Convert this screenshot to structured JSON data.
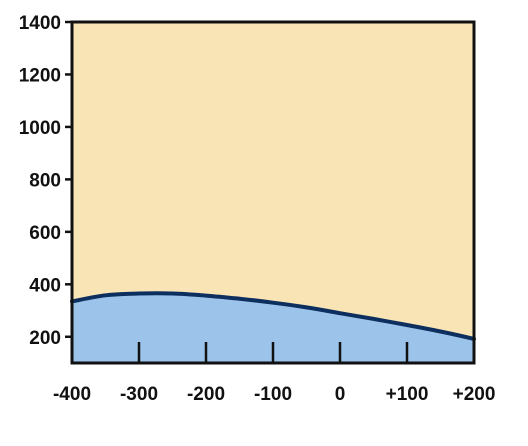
{
  "chart_data": {
    "type": "area",
    "title": "",
    "xlabel": "",
    "ylabel": "",
    "xlim": [
      -400,
      200
    ],
    "ylim": [
      100,
      1400
    ],
    "x_tick_labels": [
      {
        "value": -400,
        "label": "-400"
      },
      {
        "value": -300,
        "label": "-300"
      },
      {
        "value": -200,
        "label": "-200"
      },
      {
        "value": -100,
        "label": "-100"
      },
      {
        "value": 0,
        "label": "0"
      },
      {
        "value": 100,
        "label": "+100"
      },
      {
        "value": 200,
        "label": "+200"
      }
    ],
    "y_tick_labels": [
      {
        "value": 1400,
        "label": "1400"
      },
      {
        "value": 1200,
        "label": "1200"
      },
      {
        "value": 1000,
        "label": "1000"
      },
      {
        "value": 800,
        "label": "800"
      },
      {
        "value": 600,
        "label": "600"
      },
      {
        "value": 400,
        "label": "400"
      },
      {
        "value": 200,
        "label": "200"
      }
    ],
    "series": [
      {
        "x": [
          -400,
          -350,
          -300,
          -250,
          -200,
          -150,
          -100,
          -50,
          0,
          50,
          100,
          150,
          200
        ],
        "values": [
          335,
          358,
          365,
          365,
          357,
          345,
          330,
          312,
          290,
          268,
          245,
          220,
          192
        ]
      }
    ],
    "grid": false,
    "legend": "none",
    "colors": {
      "background": "#f9e4b5",
      "fill": "#9cc4ea",
      "line": "#0d2f5f",
      "axis": "#111111"
    }
  }
}
